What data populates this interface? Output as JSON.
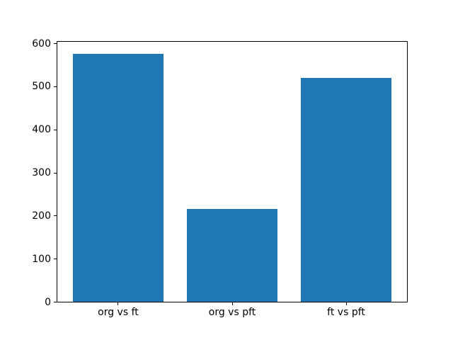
{
  "figure": {
    "background": "#ffffff",
    "frame_color": "#000000",
    "tick_label_color": "#000000"
  },
  "chart_data": {
    "type": "bar",
    "title": "",
    "xlabel": "",
    "ylabel": "",
    "categories": [
      "org vs ft",
      "org vs pft",
      "ft vs pft"
    ],
    "values": [
      577,
      216,
      521
    ],
    "yticks": [
      "0",
      "100",
      "200",
      "300",
      "400",
      "500",
      "600"
    ],
    "ytick_values": [
      0,
      100,
      200,
      300,
      400,
      500,
      600
    ],
    "ylim": [
      0,
      605
    ],
    "bar_color": "#1f77b4",
    "bar_width_fraction": 0.8,
    "grid": false,
    "legend": null
  }
}
